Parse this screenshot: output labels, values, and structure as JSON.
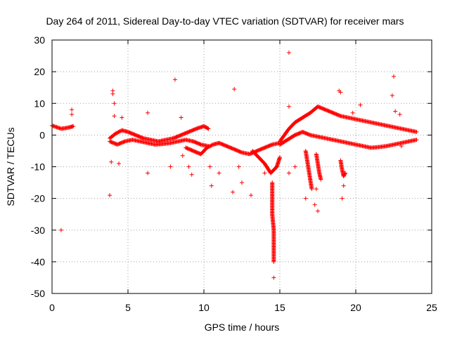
{
  "chart_data": {
    "type": "scatter",
    "title": "Day 264 of 2011, Sidereal Day-to-day VTEC variation (SDTVAR) for receiver mars",
    "xlabel": "GPS time / hours",
    "ylabel": "SDTVAR / TECUs",
    "xlim": [
      0,
      25
    ],
    "ylim": [
      -50,
      30
    ],
    "xticks": [
      "0",
      "5",
      "10",
      "15",
      "20",
      "25"
    ],
    "yticks": [
      "30",
      "20",
      "10",
      "0",
      "-10",
      "-20",
      "-30",
      "-40",
      "-50"
    ],
    "grid": true,
    "marker": "+",
    "color": "#ff0000",
    "series": [
      {
        "name": "SDTVAR",
        "segments": [
          {
            "x": [
              0.0,
              0.3,
              0.6,
              0.9,
              1.2,
              1.4
            ],
            "y": [
              3.0,
              2.5,
              2.0,
              2.2,
              2.5,
              2.8
            ]
          },
          {
            "x": [
              3.8,
              4.2,
              4.6,
              5.0,
              5.5,
              6.0,
              6.5,
              7.0,
              7.5,
              8.0,
              8.5,
              9.0,
              9.5,
              10.0,
              10.3
            ],
            "y": [
              -1.0,
              0.5,
              1.5,
              1.0,
              0.0,
              -1.0,
              -1.5,
              -2.0,
              -1.5,
              -1.0,
              0.0,
              1.0,
              2.0,
              2.8,
              2.0
            ]
          },
          {
            "x": [
              3.8,
              4.3,
              4.8,
              5.3,
              5.8,
              6.3,
              6.8,
              7.3,
              7.8,
              8.3,
              8.8,
              9.3,
              9.8,
              10.3
            ],
            "y": [
              -2.0,
              -3.0,
              -2.0,
              -1.5,
              -2.0,
              -2.5,
              -3.0,
              -2.8,
              -2.5,
              -2.0,
              -1.5,
              -2.0,
              -3.0,
              -3.5
            ]
          },
          {
            "x": [
              8.8,
              9.3,
              9.8,
              10.2,
              10.6,
              11.0,
              11.5,
              12.0,
              12.5,
              13.0,
              13.5,
              14.0,
              14.5,
              15.0
            ],
            "y": [
              -4.0,
              -5.0,
              -6.0,
              -4.0,
              -3.0,
              -2.5,
              -3.5,
              -4.5,
              -5.5,
              -6.0,
              -5.0,
              -4.0,
              -3.0,
              -2.5
            ]
          },
          {
            "x": [
              13.2,
              13.6,
              14.0,
              14.4,
              14.8,
              15.0
            ],
            "y": [
              -5.0,
              -7.0,
              -9.0,
              -12.0,
              -10.0,
              -7.0
            ]
          },
          {
            "x": [
              14.5,
              14.5,
              14.5,
              14.6,
              14.6,
              14.6
            ],
            "y": [
              -15.0,
              -20.0,
              -25.0,
              -30.0,
              -35.0,
              -40.0
            ]
          },
          {
            "x": [
              15.0,
              15.3,
              15.6,
              16.0,
              16.5,
              17.0,
              17.5,
              18.0,
              18.5,
              19.0,
              19.5,
              20.0,
              20.5,
              21.0,
              21.5,
              22.0,
              22.5,
              23.0,
              23.5,
              24.0
            ],
            "y": [
              -2.0,
              0.0,
              2.0,
              4.0,
              5.5,
              7.0,
              9.0,
              8.0,
              7.0,
              6.0,
              5.5,
              5.0,
              4.5,
              4.0,
              3.5,
              3.0,
              2.5,
              2.0,
              1.5,
              1.0
            ]
          },
          {
            "x": [
              15.0,
              15.5,
              16.0,
              16.5,
              17.0,
              17.5,
              18.0,
              18.5,
              19.0,
              19.5,
              20.0,
              20.5,
              21.0,
              21.5,
              22.0,
              22.5,
              23.0,
              23.5,
              24.0
            ],
            "y": [
              -3.0,
              -1.5,
              0.0,
              1.0,
              0.0,
              -0.5,
              -1.0,
              -1.5,
              -2.0,
              -2.5,
              -3.0,
              -3.5,
              -4.0,
              -3.8,
              -3.5,
              -3.0,
              -2.5,
              -2.0,
              -1.5
            ]
          },
          {
            "x": [
              16.7,
              16.8,
              16.9,
              17.0,
              17.1
            ],
            "y": [
              -5.0,
              -8.0,
              -11.0,
              -14.0,
              -17.0
            ]
          },
          {
            "x": [
              17.4,
              17.5,
              17.6,
              17.7
            ],
            "y": [
              -6.0,
              -9.0,
              -12.0,
              -14.0
            ]
          },
          {
            "x": [
              19.0,
              19.1,
              19.2,
              19.3
            ],
            "y": [
              -8.0,
              -11.0,
              -13.0,
              -12.0
            ]
          }
        ],
        "scatter": {
          "x": [
            0.6,
            1.3,
            1.3,
            3.8,
            3.9,
            4.0,
            4.0,
            4.1,
            4.1,
            4.4,
            4.6,
            6.3,
            6.3,
            7.8,
            8.1,
            8.5,
            8.6,
            9.0,
            9.2,
            10.4,
            10.5,
            11.0,
            11.9,
            12.0,
            12.3,
            12.5,
            13.1,
            14.0,
            14.6,
            15.6,
            15.6,
            15.6,
            16.0,
            16.7,
            17.3,
            17.4,
            17.5,
            18.9,
            19.0,
            19.1,
            19.2,
            19.3,
            19.8,
            20.3,
            22.4,
            22.5,
            22.6,
            22.9,
            23.0
          ],
          "y": [
            -30.0,
            6.5,
            8.0,
            -19.0,
            -8.5,
            14.0,
            13.0,
            10.0,
            6.0,
            -9.0,
            5.5,
            7.0,
            -12.0,
            -10.0,
            17.5,
            5.5,
            -6.5,
            -10.0,
            -12.5,
            -10.0,
            -16.0,
            -12.0,
            -18.0,
            14.5,
            -10.0,
            -15.0,
            -19.0,
            -12.0,
            -45.0,
            26.0,
            9.0,
            -12.0,
            -10.0,
            -20.0,
            -22.0,
            -17.0,
            -24.0,
            14.0,
            13.5,
            -20.0,
            -16.0,
            -12.0,
            7.0,
            9.5,
            12.5,
            18.5,
            7.5,
            6.5,
            -3.5
          ]
        }
      }
    ]
  }
}
